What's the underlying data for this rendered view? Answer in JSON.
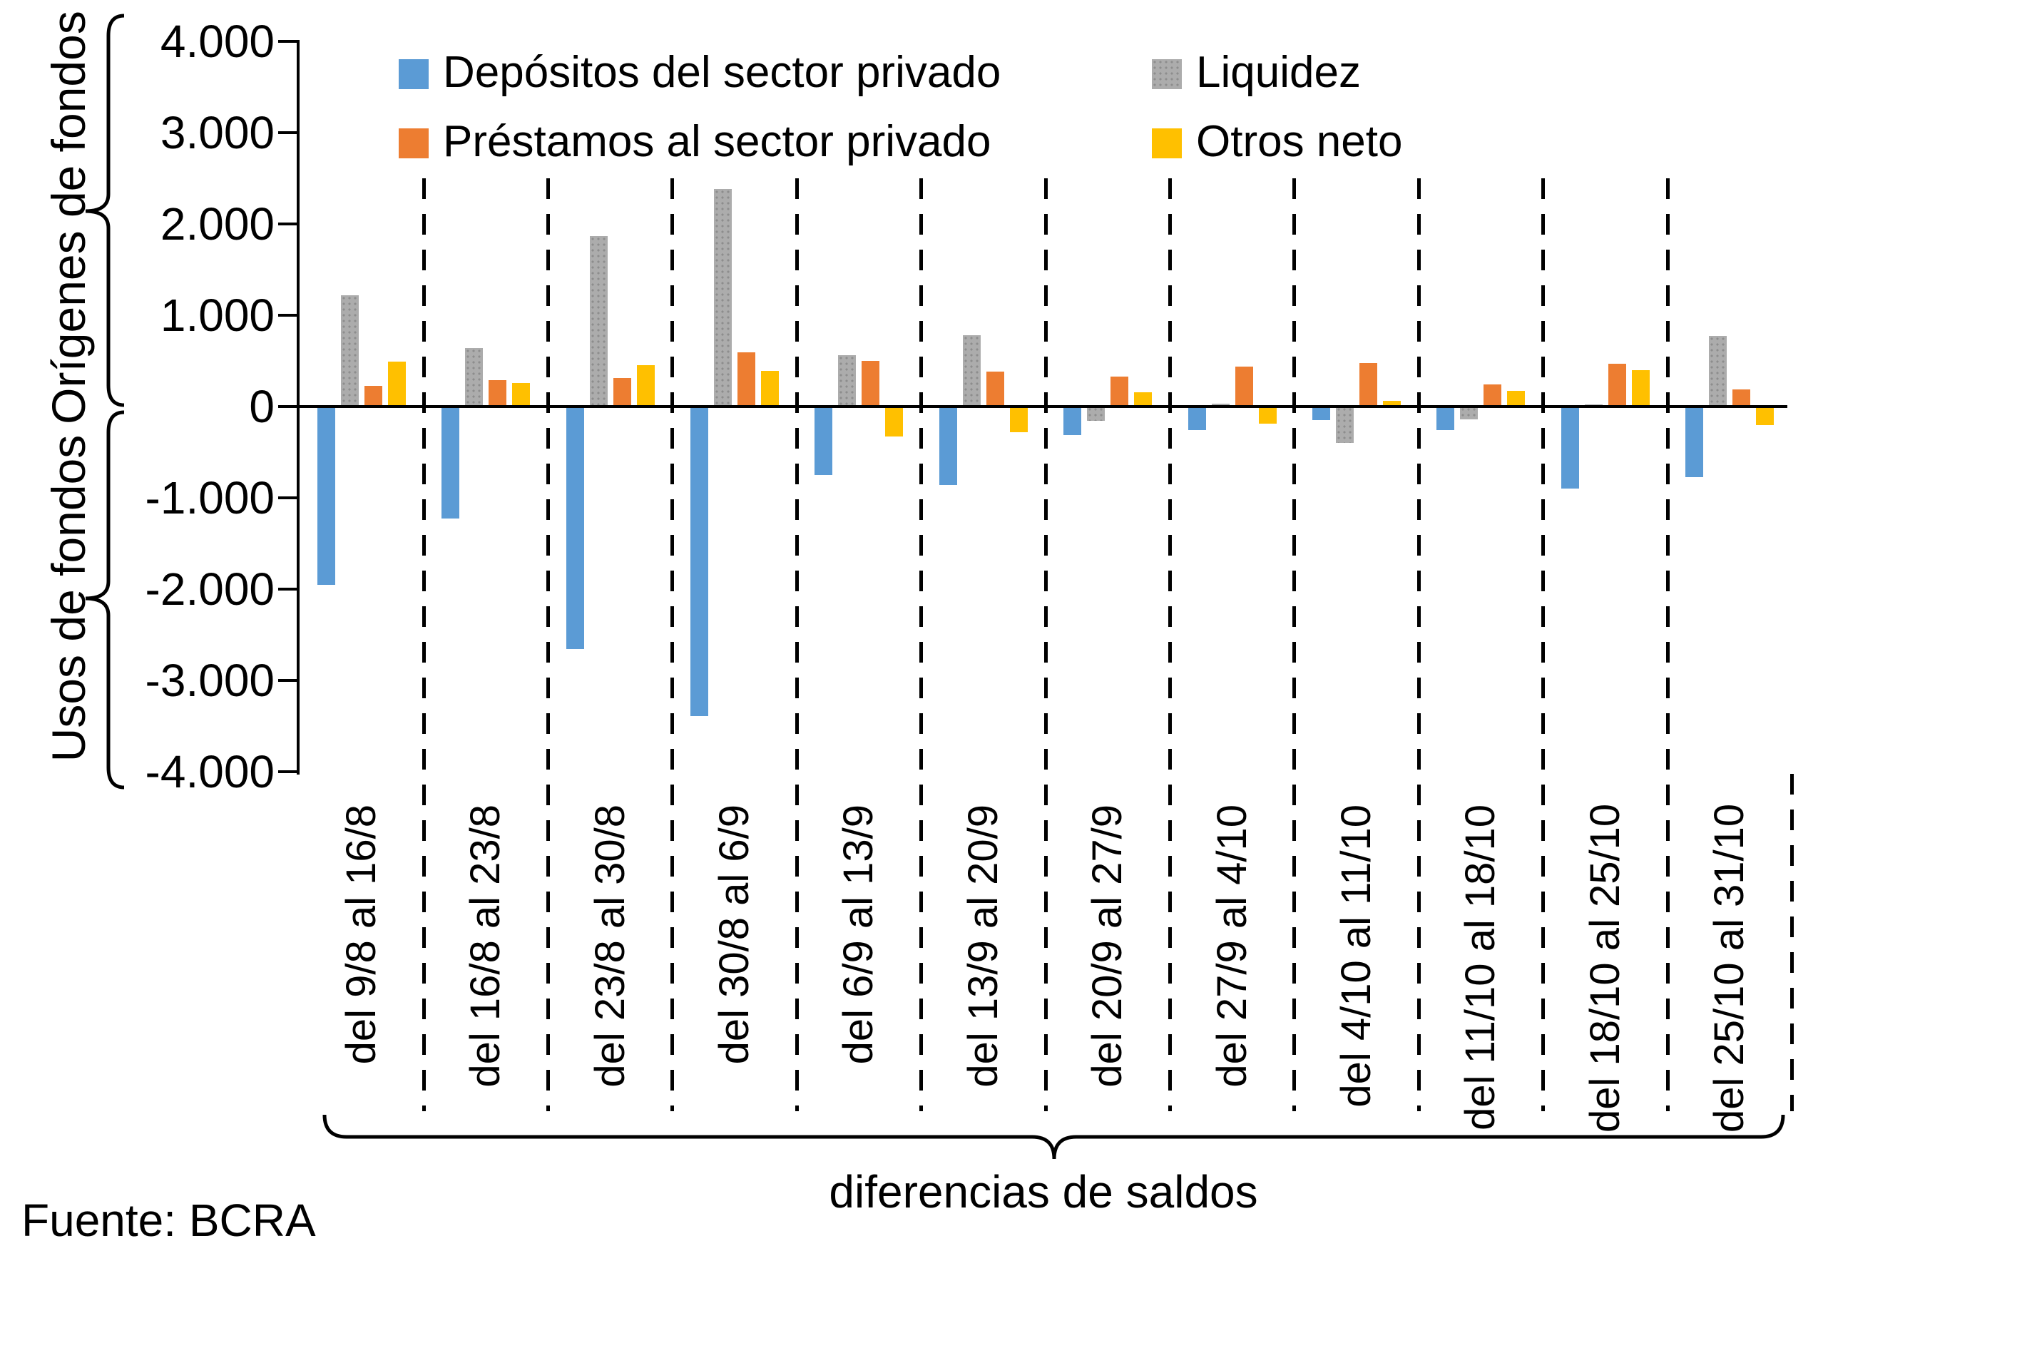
{
  "chart_data": {
    "type": "bar",
    "title": "",
    "categories": [
      "del 9/8 al 16/8",
      "del 16/8 al 23/8",
      "del 23/8 al 30/8",
      "del 30/8 al 6/9",
      "del 6/9 al 13/9",
      "del 13/9 al 20/9",
      "del 20/9 al 27/9",
      "del 27/9 al 4/10",
      "del 4/10 al 11/10",
      "del 11/10 al 18/10",
      "del 18/10 al 25/10",
      "del 25/10 al 31/10"
    ],
    "series": [
      {
        "name": "Depósitos del sector privado",
        "color": "#5B9BD5",
        "pattern": false,
        "values": [
          -1950,
          -1230,
          -2660,
          -3390,
          -750,
          -860,
          -310,
          -260,
          -145,
          -260,
          -900,
          -770
        ]
      },
      {
        "name": "Liquidez",
        "color": "#ACACAC",
        "pattern": true,
        "values": [
          1220,
          640,
          1870,
          2380,
          560,
          780,
          -155,
          30,
          -400,
          -140,
          25,
          775
        ]
      },
      {
        "name": "Préstamos al sector privado",
        "color": "#ED7D31",
        "pattern": false,
        "values": [
          230,
          290,
          310,
          590,
          500,
          380,
          330,
          440,
          480,
          240,
          470,
          190
        ]
      },
      {
        "name": "Otros neto",
        "color": "#FFC000",
        "pattern": false,
        "values": [
          490,
          260,
          450,
          390,
          -330,
          -280,
          160,
          -190,
          65,
          170,
          400,
          -200
        ]
      }
    ],
    "ylim": [
      -4000,
      4000
    ],
    "yticks": [
      {
        "label": "4.000",
        "v": 4000
      },
      {
        "label": "3.000",
        "v": 3000
      },
      {
        "label": "2.000",
        "v": 2000
      },
      {
        "label": "1.000",
        "v": 1000
      },
      {
        "label": "0",
        "v": 0
      },
      {
        "label": "-1.000",
        "v": -1000
      },
      {
        "label": "-2.000",
        "v": -2000
      },
      {
        "label": "-3.000",
        "v": -3000
      },
      {
        "label": "-4.000",
        "v": -4000
      }
    ],
    "grid": false,
    "legend_position": "top, two columns inside plot area",
    "category_separators": "vertical dashed lines between weekly groups"
  },
  "axis_annotations": {
    "top": "Orígenes de fondos",
    "bottom": "Usos de fondos"
  },
  "xaxis_brace_label": "diferencias de saldos",
  "source": "Fuente: BCRA"
}
